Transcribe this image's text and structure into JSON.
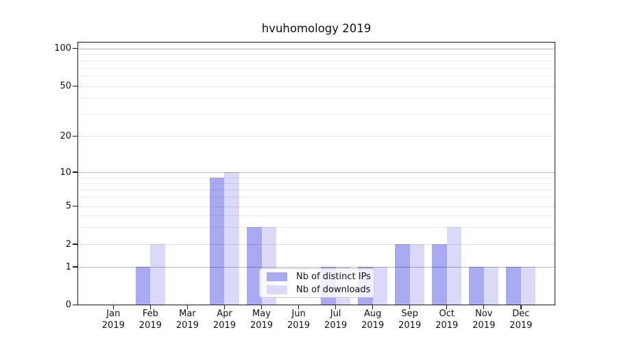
{
  "chart_data": {
    "type": "bar",
    "title": "hvuhomology 2019",
    "categories": [
      "Jan",
      "Feb",
      "Mar",
      "Apr",
      "May",
      "Jun",
      "Jul",
      "Aug",
      "Sep",
      "Oct",
      "Nov",
      "Dec"
    ],
    "year_label": "2019",
    "series": [
      {
        "name": "Nb of distinct IPs",
        "color": "#a9a9f1",
        "values": [
          0,
          1,
          0,
          9,
          3,
          0,
          1,
          1,
          2,
          2,
          1,
          1
        ]
      },
      {
        "name": "Nb of downloads",
        "color": "#dadaf8",
        "values": [
          0,
          2,
          0,
          10,
          3,
          0,
          1,
          1,
          2,
          3,
          1,
          1
        ]
      }
    ],
    "yaxis": {
      "scale": "log-like with linear 0-1 segment",
      "tick_labels": [
        100,
        50,
        20,
        10,
        5,
        2,
        1,
        0
      ],
      "ylim": [
        0,
        113
      ]
    },
    "grid": "on",
    "legend_position": "lower center-right inside plot"
  }
}
